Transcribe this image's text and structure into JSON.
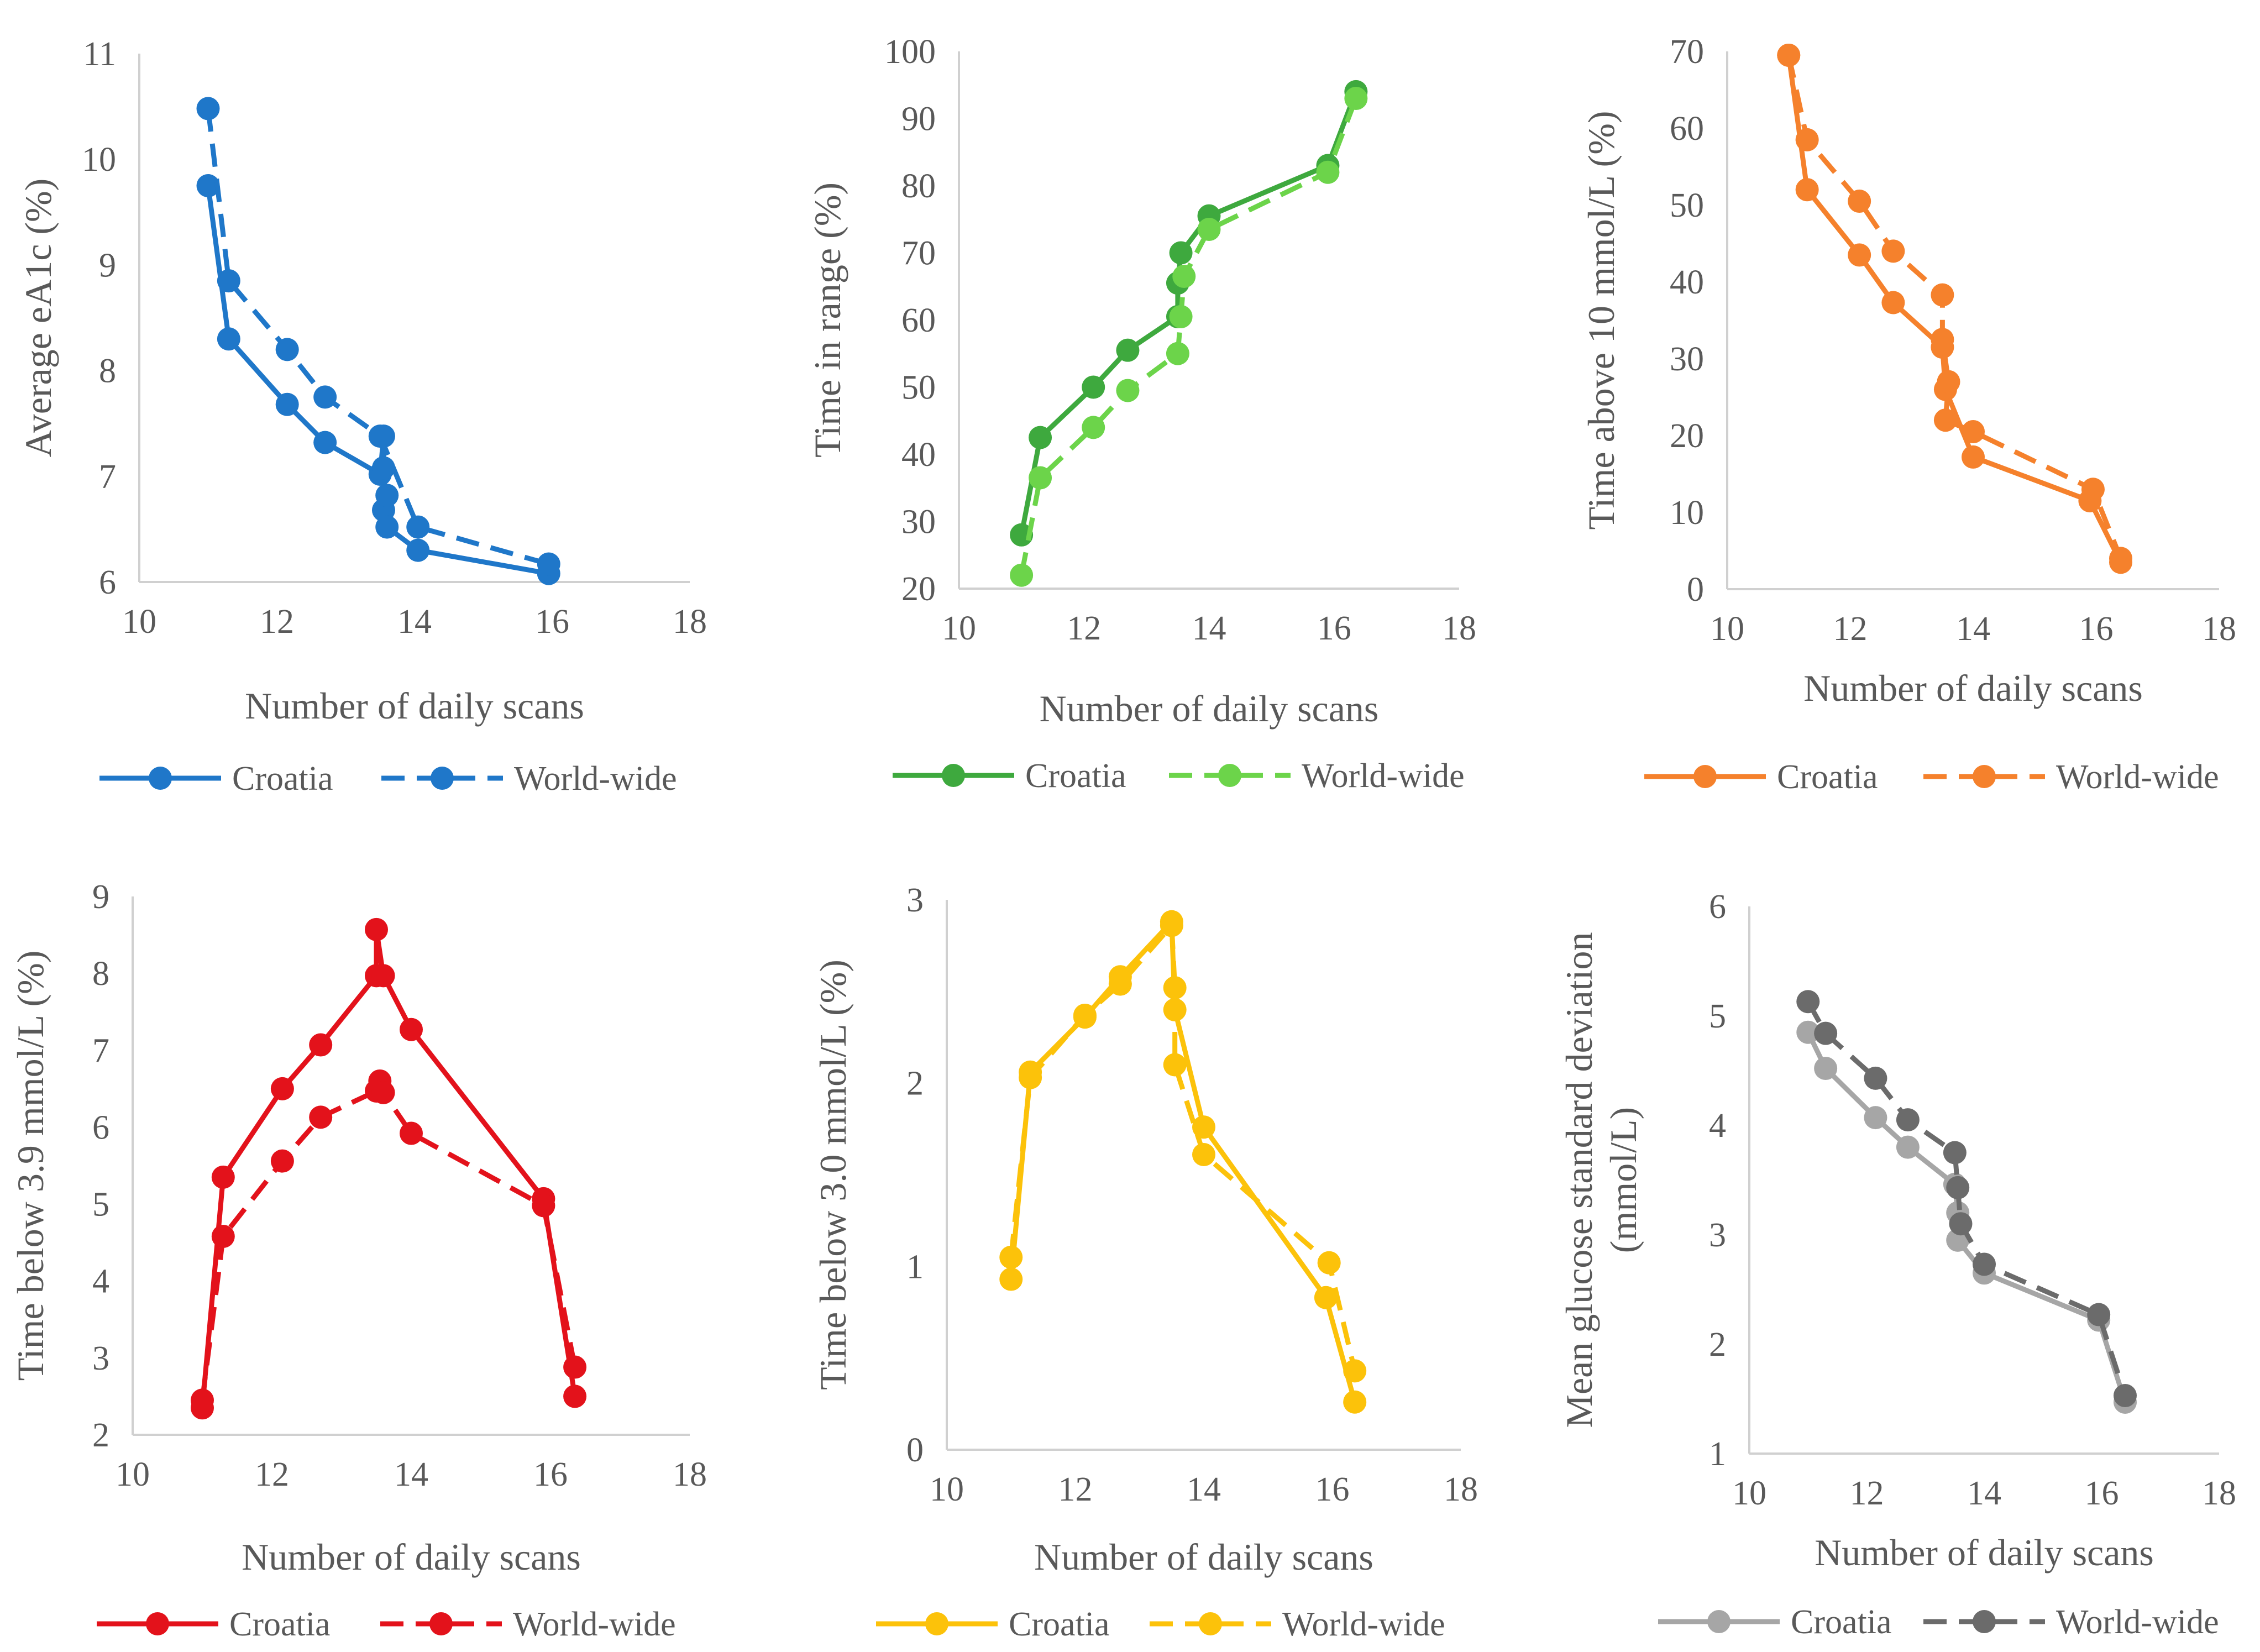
{
  "chart_data": [
    {
      "type": "line",
      "color": "#1f77c9",
      "xlabel": "Number of daily scans",
      "ylabel": "Average eA1c (%)",
      "xlim": [
        10,
        18
      ],
      "ylim": [
        6,
        11
      ],
      "xticks": [
        10,
        12,
        14,
        16,
        18
      ],
      "yticks": [
        6,
        7,
        8,
        9,
        10,
        11
      ],
      "series": [
        {
          "name": "Croatia",
          "style": "solid",
          "points": [
            [
              11.0,
              9.75
            ],
            [
              11.3,
              8.3
            ],
            [
              12.15,
              7.68
            ],
            [
              12.7,
              7.32
            ],
            [
              13.5,
              7.02
            ],
            [
              13.55,
              7.38
            ],
            [
              13.55,
              7.08
            ],
            [
              13.55,
              6.68
            ],
            [
              13.6,
              6.82
            ],
            [
              13.6,
              6.52
            ],
            [
              14.05,
              6.3
            ],
            [
              15.95,
              6.08
            ]
          ]
        },
        {
          "name": "World-wide",
          "style": "dashed",
          "points": [
            [
              11.0,
              10.48
            ],
            [
              11.3,
              8.85
            ],
            [
              12.15,
              8.2
            ],
            [
              12.7,
              7.75
            ],
            [
              13.5,
              7.38
            ],
            [
              14.05,
              6.52
            ],
            [
              15.95,
              6.17
            ]
          ]
        }
      ],
      "legend": [
        "Croatia",
        "World-wide"
      ]
    },
    {
      "type": "line",
      "color": "#3ea93e",
      "color2": "#6cd44a",
      "xlabel": "Number of daily scans",
      "ylabel": "Time in range (%)",
      "xlim": [
        10,
        18
      ],
      "ylim": [
        20,
        100
      ],
      "xticks": [
        10,
        12,
        14,
        16,
        18
      ],
      "yticks": [
        20,
        30,
        40,
        50,
        60,
        70,
        80,
        90,
        100
      ],
      "series": [
        {
          "name": "Croatia",
          "style": "solid",
          "points": [
            [
              11.0,
              28
            ],
            [
              11.3,
              42.5
            ],
            [
              12.15,
              50
            ],
            [
              12.7,
              55.5
            ],
            [
              13.5,
              60.5
            ],
            [
              13.5,
              65.5
            ],
            [
              13.55,
              70
            ],
            [
              14.0,
              75.5
            ],
            [
              15.9,
              83
            ],
            [
              16.35,
              94
            ]
          ]
        },
        {
          "name": "World-wide",
          "style": "dashed",
          "points": [
            [
              11.0,
              22
            ],
            [
              11.3,
              36.5
            ],
            [
              12.15,
              44
            ],
            [
              12.7,
              49.5
            ],
            [
              13.5,
              55
            ],
            [
              13.55,
              60.5
            ],
            [
              13.6,
              66.5
            ],
            [
              14.0,
              73.5
            ],
            [
              15.9,
              82
            ],
            [
              16.35,
              93
            ]
          ]
        }
      ],
      "legend": [
        "Croatia",
        "World-wide"
      ]
    },
    {
      "type": "line",
      "color": "#f5812c",
      "xlabel": "Number of daily scans",
      "ylabel": "Time above 10 mmol/L (%)",
      "xlim": [
        10,
        18
      ],
      "ylim": [
        0,
        70
      ],
      "xticks": [
        10,
        12,
        14,
        16,
        18
      ],
      "yticks": [
        0,
        10,
        20,
        30,
        40,
        50,
        60,
        70
      ],
      "series": [
        {
          "name": "Croatia",
          "style": "solid",
          "points": [
            [
              11.0,
              69.5
            ],
            [
              11.3,
              52
            ],
            [
              12.15,
              43.5
            ],
            [
              12.7,
              37.3
            ],
            [
              13.5,
              31.5
            ],
            [
              13.55,
              26
            ],
            [
              14.0,
              17.2
            ],
            [
              15.9,
              11.5
            ],
            [
              16.4,
              3.5
            ]
          ]
        },
        {
          "name": "World-wide",
          "style": "dashed",
          "points": [
            [
              11.0,
              69.5
            ],
            [
              11.3,
              58.5
            ],
            [
              12.15,
              50.5
            ],
            [
              12.7,
              44
            ],
            [
              13.5,
              38.3
            ],
            [
              13.5,
              32.5
            ],
            [
              13.6,
              27
            ],
            [
              13.55,
              22
            ],
            [
              14.0,
              20.5
            ],
            [
              15.95,
              13
            ],
            [
              16.4,
              4
            ]
          ]
        }
      ],
      "legend": [
        "Croatia",
        "World-wide"
      ]
    },
    {
      "type": "line",
      "color": "#e3121b",
      "xlabel": "Number of daily scans",
      "ylabel": "Time below 3.9 mmol/L (%)",
      "xlim": [
        10,
        18
      ],
      "ylim": [
        2,
        9
      ],
      "xticks": [
        10,
        12,
        14,
        16,
        18
      ],
      "yticks": [
        2,
        3,
        4,
        5,
        6,
        7,
        8,
        9
      ],
      "series": [
        {
          "name": "Croatia",
          "style": "solid",
          "points": [
            [
              11.0,
              2.35
            ],
            [
              11.3,
              5.35
            ],
            [
              12.15,
              6.5
            ],
            [
              12.7,
              7.07
            ],
            [
              13.5,
              7.97
            ],
            [
              13.5,
              8.57
            ],
            [
              13.6,
              7.97
            ],
            [
              14.0,
              7.27
            ],
            [
              15.9,
              5.07
            ],
            [
              16.35,
              2.5
            ]
          ]
        },
        {
          "name": "World-wide",
          "style": "dashed",
          "points": [
            [
              11.0,
              2.45
            ],
            [
              11.3,
              4.58
            ],
            [
              12.15,
              5.56
            ],
            [
              12.7,
              6.13
            ],
            [
              13.5,
              6.47
            ],
            [
              13.55,
              6.6
            ],
            [
              13.6,
              6.45
            ],
            [
              14.0,
              5.92
            ],
            [
              15.9,
              4.98
            ],
            [
              16.35,
              2.88
            ]
          ]
        }
      ],
      "legend": [
        "Croatia",
        "World-wide"
      ]
    },
    {
      "type": "line",
      "color": "#fcc20a",
      "xlabel": "Number of daily scans",
      "ylabel": "Time below 3.0 mmol/L (%)",
      "xlim": [
        10,
        18
      ],
      "ylim": [
        0,
        3
      ],
      "xticks": [
        10,
        12,
        14,
        16,
        18
      ],
      "yticks": [
        0,
        1,
        2,
        3
      ],
      "series": [
        {
          "name": "Croatia",
          "style": "solid",
          "points": [
            [
              11.0,
              0.93
            ],
            [
              11.3,
              2.06
            ],
            [
              12.15,
              2.36
            ],
            [
              12.7,
              2.58
            ],
            [
              13.5,
              2.88
            ],
            [
              13.55,
              2.4
            ],
            [
              14.0,
              1.76
            ],
            [
              15.9,
              0.83
            ],
            [
              16.35,
              0.26
            ]
          ]
        },
        {
          "name": "World-wide",
          "style": "dashed",
          "points": [
            [
              11.0,
              1.05
            ],
            [
              11.3,
              2.03
            ],
            [
              12.15,
              2.37
            ],
            [
              12.7,
              2.54
            ],
            [
              13.5,
              2.86
            ],
            [
              13.55,
              2.52
            ],
            [
              13.55,
              2.1
            ],
            [
              14.0,
              1.61
            ],
            [
              15.95,
              1.02
            ],
            [
              16.35,
              0.43
            ]
          ]
        }
      ],
      "legend": [
        "Croatia",
        "World-wide"
      ]
    },
    {
      "type": "line",
      "color": "#a6a6a6",
      "color2": "#6b6b6b",
      "xlabel": "Number of daily scans",
      "ylabel": "Mean glucose standard deviation (mmol/L)",
      "xlim": [
        10,
        18
      ],
      "ylim": [
        1,
        6
      ],
      "xticks": [
        10,
        12,
        14,
        16,
        18
      ],
      "yticks": [
        1,
        2,
        3,
        4,
        5,
        6
      ],
      "series": [
        {
          "name": "Croatia",
          "style": "solid",
          "points": [
            [
              11.0,
              4.85
            ],
            [
              11.3,
              4.52
            ],
            [
              12.15,
              4.07
            ],
            [
              12.7,
              3.8
            ],
            [
              13.5,
              3.46
            ],
            [
              13.55,
              3.2
            ],
            [
              13.55,
              2.95
            ],
            [
              14.0,
              2.65
            ],
            [
              15.95,
              2.22
            ],
            [
              16.4,
              1.47
            ]
          ]
        },
        {
          "name": "World-wide",
          "style": "dashed",
          "points": [
            [
              11.0,
              5.13
            ],
            [
              11.3,
              4.84
            ],
            [
              12.15,
              4.43
            ],
            [
              12.7,
              4.05
            ],
            [
              13.5,
              3.75
            ],
            [
              13.55,
              3.43
            ],
            [
              13.6,
              3.1
            ],
            [
              14.0,
              2.73
            ],
            [
              15.95,
              2.27
            ],
            [
              16.4,
              1.53
            ]
          ]
        }
      ],
      "legend": [
        "Croatia",
        "World-wide"
      ]
    }
  ]
}
